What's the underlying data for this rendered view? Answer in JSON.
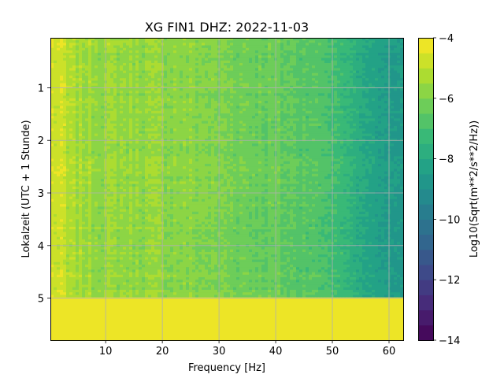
{
  "chart_data": {
    "type": "heatmap",
    "title": "XG FIN1  DHZ: 2022-11-03",
    "xlabel": "Frequency [Hz]",
    "ylabel": "Lokalzeit (UTC + 1 Stunde)",
    "xlim": [
      0.25,
      62.5
    ],
    "ylim": [
      5.8,
      0.05
    ],
    "y_inverted": true,
    "x_ticks": [
      10,
      20,
      30,
      40,
      50,
      60
    ],
    "y_ticks": [
      1,
      2,
      3,
      4,
      5
    ],
    "grid": true,
    "data_end_hour": 4.97,
    "fill_value_after_end": -4,
    "colorbar": {
      "label": "Log10(Sqrt(m**2/s**2/Hz))",
      "colormap": "viridis",
      "range": [
        -14,
        -4
      ],
      "ticks": [
        -4,
        -6,
        -8,
        -10,
        -12,
        -14
      ],
      "tick_labels": [
        "−4",
        "−6",
        "−8",
        "−10",
        "−12",
        "−14"
      ],
      "levels": 20
    },
    "spectrum_profile": {
      "frequency_hz": [
        0.25,
        5,
        10,
        15,
        20,
        25,
        30,
        35,
        40,
        45,
        48,
        50,
        52,
        55,
        58,
        60,
        62.5
      ],
      "level": [
        -5.0,
        -5.4,
        -5.6,
        -5.6,
        -5.7,
        -5.8,
        -6.0,
        -6.2,
        -6.4,
        -6.6,
        -6.8,
        -7.0,
        -7.3,
        -7.9,
        -8.3,
        -8.5,
        -8.7
      ]
    }
  }
}
